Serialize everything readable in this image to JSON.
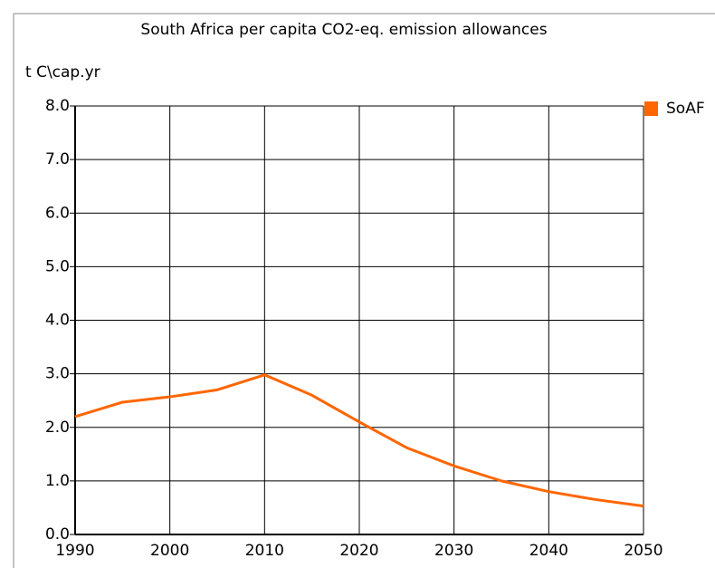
{
  "chart_data": {
    "type": "line",
    "title": "South Africa per capita CO2-eq. emission allowances",
    "y_label": "t C\\cap.yr",
    "x": [
      1990,
      1995,
      2000,
      2005,
      2010,
      2015,
      2020,
      2025,
      2030,
      2035,
      2040,
      2045,
      2050
    ],
    "series": [
      {
        "name": "SoAF",
        "color": "#ff6600",
        "values": [
          2.2,
          2.47,
          2.57,
          2.7,
          2.98,
          2.6,
          2.1,
          1.62,
          1.28,
          1.0,
          0.8,
          0.65,
          0.53
        ]
      }
    ],
    "xlim": [
      1990,
      2050
    ],
    "xticks": [
      1990,
      2000,
      2010,
      2020,
      2030,
      2040,
      2050
    ],
    "ylim": [
      0,
      8
    ],
    "yticks": [
      {
        "value": 0,
        "label": "0.0"
      },
      {
        "value": 1,
        "label": "1.0"
      },
      {
        "value": 2,
        "label": "2.0"
      },
      {
        "value": 3,
        "label": "3.0"
      },
      {
        "value": 4,
        "label": "4.0"
      },
      {
        "value": 5,
        "label": "5.0"
      },
      {
        "value": 6,
        "label": "6.0"
      },
      {
        "value": 7,
        "label": "7.0"
      },
      {
        "value": 8,
        "label": "8.0"
      }
    ],
    "grid": true,
    "legend": "right"
  }
}
